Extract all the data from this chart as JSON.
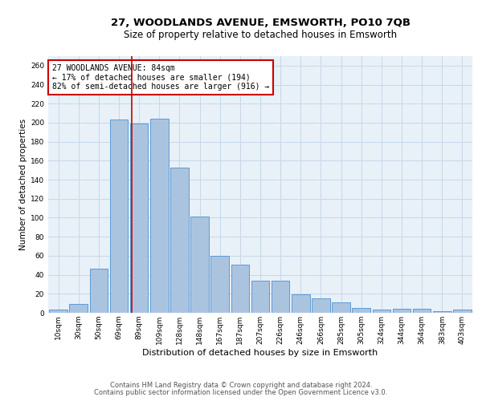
{
  "title": "27, WOODLANDS AVENUE, EMSWORTH, PO10 7QB",
  "subtitle": "Size of property relative to detached houses in Emsworth",
  "xlabel": "Distribution of detached houses by size in Emsworth",
  "ylabel": "Number of detached properties",
  "categories": [
    "10sqm",
    "30sqm",
    "50sqm",
    "69sqm",
    "89sqm",
    "109sqm",
    "128sqm",
    "148sqm",
    "167sqm",
    "187sqm",
    "207sqm",
    "226sqm",
    "246sqm",
    "266sqm",
    "285sqm",
    "305sqm",
    "324sqm",
    "344sqm",
    "364sqm",
    "383sqm",
    "403sqm"
  ],
  "values": [
    3,
    9,
    46,
    203,
    199,
    204,
    153,
    101,
    60,
    51,
    34,
    34,
    19,
    15,
    11,
    5,
    3,
    4,
    4,
    2,
    3
  ],
  "bar_color": "#aac4e0",
  "bar_edge_color": "#5b9bd5",
  "vline_x_index": 3.62,
  "vline_color": "#cc0000",
  "annotation_text": "27 WOODLANDS AVENUE: 84sqm\n← 17% of detached houses are smaller (194)\n82% of semi-detached houses are larger (916) →",
  "annotation_box_color": "#ffffff",
  "annotation_box_edge_color": "#cc0000",
  "ylim": [
    0,
    270
  ],
  "yticks": [
    0,
    20,
    40,
    60,
    80,
    100,
    120,
    140,
    160,
    180,
    200,
    220,
    240,
    260
  ],
  "grid_color": "#c8d8e8",
  "background_color": "#e8f0f8",
  "footer_line1": "Contains HM Land Registry data © Crown copyright and database right 2024.",
  "footer_line2": "Contains public sector information licensed under the Open Government Licence v3.0.",
  "title_fontsize": 9.5,
  "subtitle_fontsize": 8.5,
  "xlabel_fontsize": 8,
  "ylabel_fontsize": 7.5,
  "tick_fontsize": 6.5,
  "annotation_fontsize": 7,
  "footer_fontsize": 6
}
